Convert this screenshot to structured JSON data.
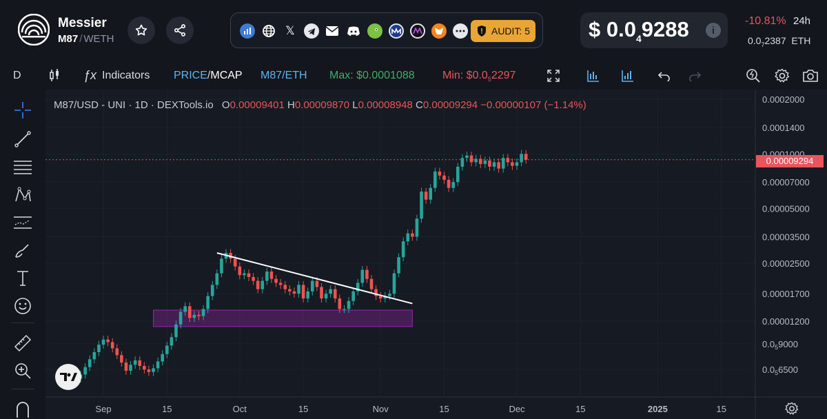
{
  "token": {
    "name": "Messier",
    "symbol": "M87",
    "separator": "/",
    "quote": "WETH"
  },
  "social": {
    "audit_label": "AUDIT: 5"
  },
  "price": {
    "currency": "$",
    "lead": "0.0",
    "zeros": "4",
    "digits": "9288",
    "change": "-10.81%",
    "period": "24h",
    "eth_lead": "0.0",
    "eth_zeros": "7",
    "eth_digits": "2387",
    "eth_unit": "ETH"
  },
  "toolbar": {
    "interval": "D",
    "indicators": "Indicators",
    "price_label": "PRICE",
    "slash": "/",
    "mcap_label": "MCAP",
    "pair_label": "M87/ETH",
    "max_label": "Max: $0.0001088",
    "min_label": "Min: $0.0",
    "min_zeros": "5",
    "min_digits": "2297"
  },
  "legend": {
    "title": "M87/USD - UNI · 1D · DEXTools.io",
    "open_key": "O",
    "open": "0.00009401",
    "high_key": "H",
    "high": "0.00009870",
    "low_key": "L",
    "low": "0.00008948",
    "close_key": "C",
    "close": "0.00009294",
    "change": "−0.00000107 (−1.14%)"
  },
  "colors": {
    "up": "#26a69a",
    "down": "#ef5350",
    "accent": "#e8555d",
    "link": "#5eb4f2",
    "max": "#3fae6a",
    "audit": "#e9a635"
  },
  "chart_data": {
    "type": "candlestick",
    "series_label": "M87/USD - UNI · 1D",
    "y_scale": "log",
    "y_tick_labels": [
      "0.0002000",
      "0.0001400",
      "0.0001000",
      "0.00007000",
      "0.00005000",
      "0.00003500",
      "0.00002500",
      "0.00001700",
      "0.00001200"
    ],
    "y_tick_values": [
      0.0002,
      0.00014,
      0.0001,
      7e-05,
      5e-05,
      3.5e-05,
      2.5e-05,
      1.7e-05,
      1.2e-05
    ],
    "y_tick_sub": [
      {
        "lead": "0.0",
        "zeros": "5",
        "digits": "9000",
        "value": 9e-06
      },
      {
        "lead": "0.0",
        "zeros": "5",
        "digits": "6500",
        "value": 6.5e-06
      }
    ],
    "x_tick_labels": [
      "Sep",
      "15",
      "Oct",
      "15",
      "Nov",
      "15",
      "Dec",
      "15",
      "2025",
      "15"
    ],
    "x_tick_dates": [
      "2024-09-01",
      "2024-09-15",
      "2024-10-01",
      "2024-10-15",
      "2024-11-01",
      "2024-11-15",
      "2024-12-01",
      "2024-12-15",
      "2025-01-01",
      "2025-01-15"
    ],
    "last_price_label": "0.00009294",
    "last_price": 9.294e-05,
    "start_date": "2024-08-27",
    "closes": [
      6.1e-06,
      6.7e-06,
      7.4e-06,
      8.1e-06,
      8.9e-06,
      9.5e-06,
      9.2e-06,
      8.5e-06,
      7.8e-06,
      7.1e-06,
      6.4e-06,
      6.9e-06,
      7.3e-06,
      6.8e-06,
      6.5e-06,
      6.3e-06,
      6.6e-06,
      7.2e-06,
      7.9e-06,
      8.8e-06,
      9.8e-06,
      1.15e-05,
      1.35e-05,
      1.45e-05,
      1.25e-05,
      1.3e-05,
      1.28e-05,
      1.4e-05,
      1.65e-05,
      1.9e-05,
      2.2e-05,
      2.65e-05,
      2.85e-05,
      2.65e-05,
      2.4e-05,
      2.15e-05,
      2.2e-05,
      2.1e-05,
      2e-05,
      1.8e-05,
      2e-05,
      2.25e-05,
      2.05e-05,
      1.95e-05,
      1.9e-05,
      1.8e-05,
      1.75e-05,
      1.7e-05,
      1.9e-05,
      1.6e-05,
      1.75e-05,
      2e-05,
      1.85e-05,
      1.6e-05,
      1.7e-05,
      1.8e-05,
      1.6e-05,
      1.4e-05,
      1.4e-05,
      1.55e-05,
      1.75e-05,
      1.95e-05,
      2.3e-05,
      2.05e-05,
      1.8e-05,
      1.65e-05,
      1.6e-05,
      1.65e-05,
      1.7e-05,
      2.2e-05,
      2.7e-05,
      3.3e-05,
      3.65e-05,
      3.5e-05,
      4.4e-05,
      6.2e-05,
      5.6e-05,
      6.5e-05,
      8e-05,
      7.6e-05,
      7.2e-05,
      6.5e-05,
      7e-05,
      8.5e-05,
      9.5e-05,
      9.8e-05,
      9e-05,
      9.4e-05,
      8.8e-05,
      9.2e-05,
      8.5e-05,
      9e-05,
      8.3e-05,
      9.5e-05,
      9e-05,
      8.6e-05,
      9e-05,
      0.0001,
      9.29e-05
    ],
    "annotations": {
      "trendline": [
        {
          "date": "2024-09-26",
          "value": 2.85e-05
        },
        {
          "date": "2024-11-08",
          "value": 1.5e-05
        }
      ],
      "support_zone": {
        "from": "2024-09-12",
        "to": "2024-11-08",
        "low": 1.12e-05,
        "high": 1.38e-05
      }
    }
  }
}
